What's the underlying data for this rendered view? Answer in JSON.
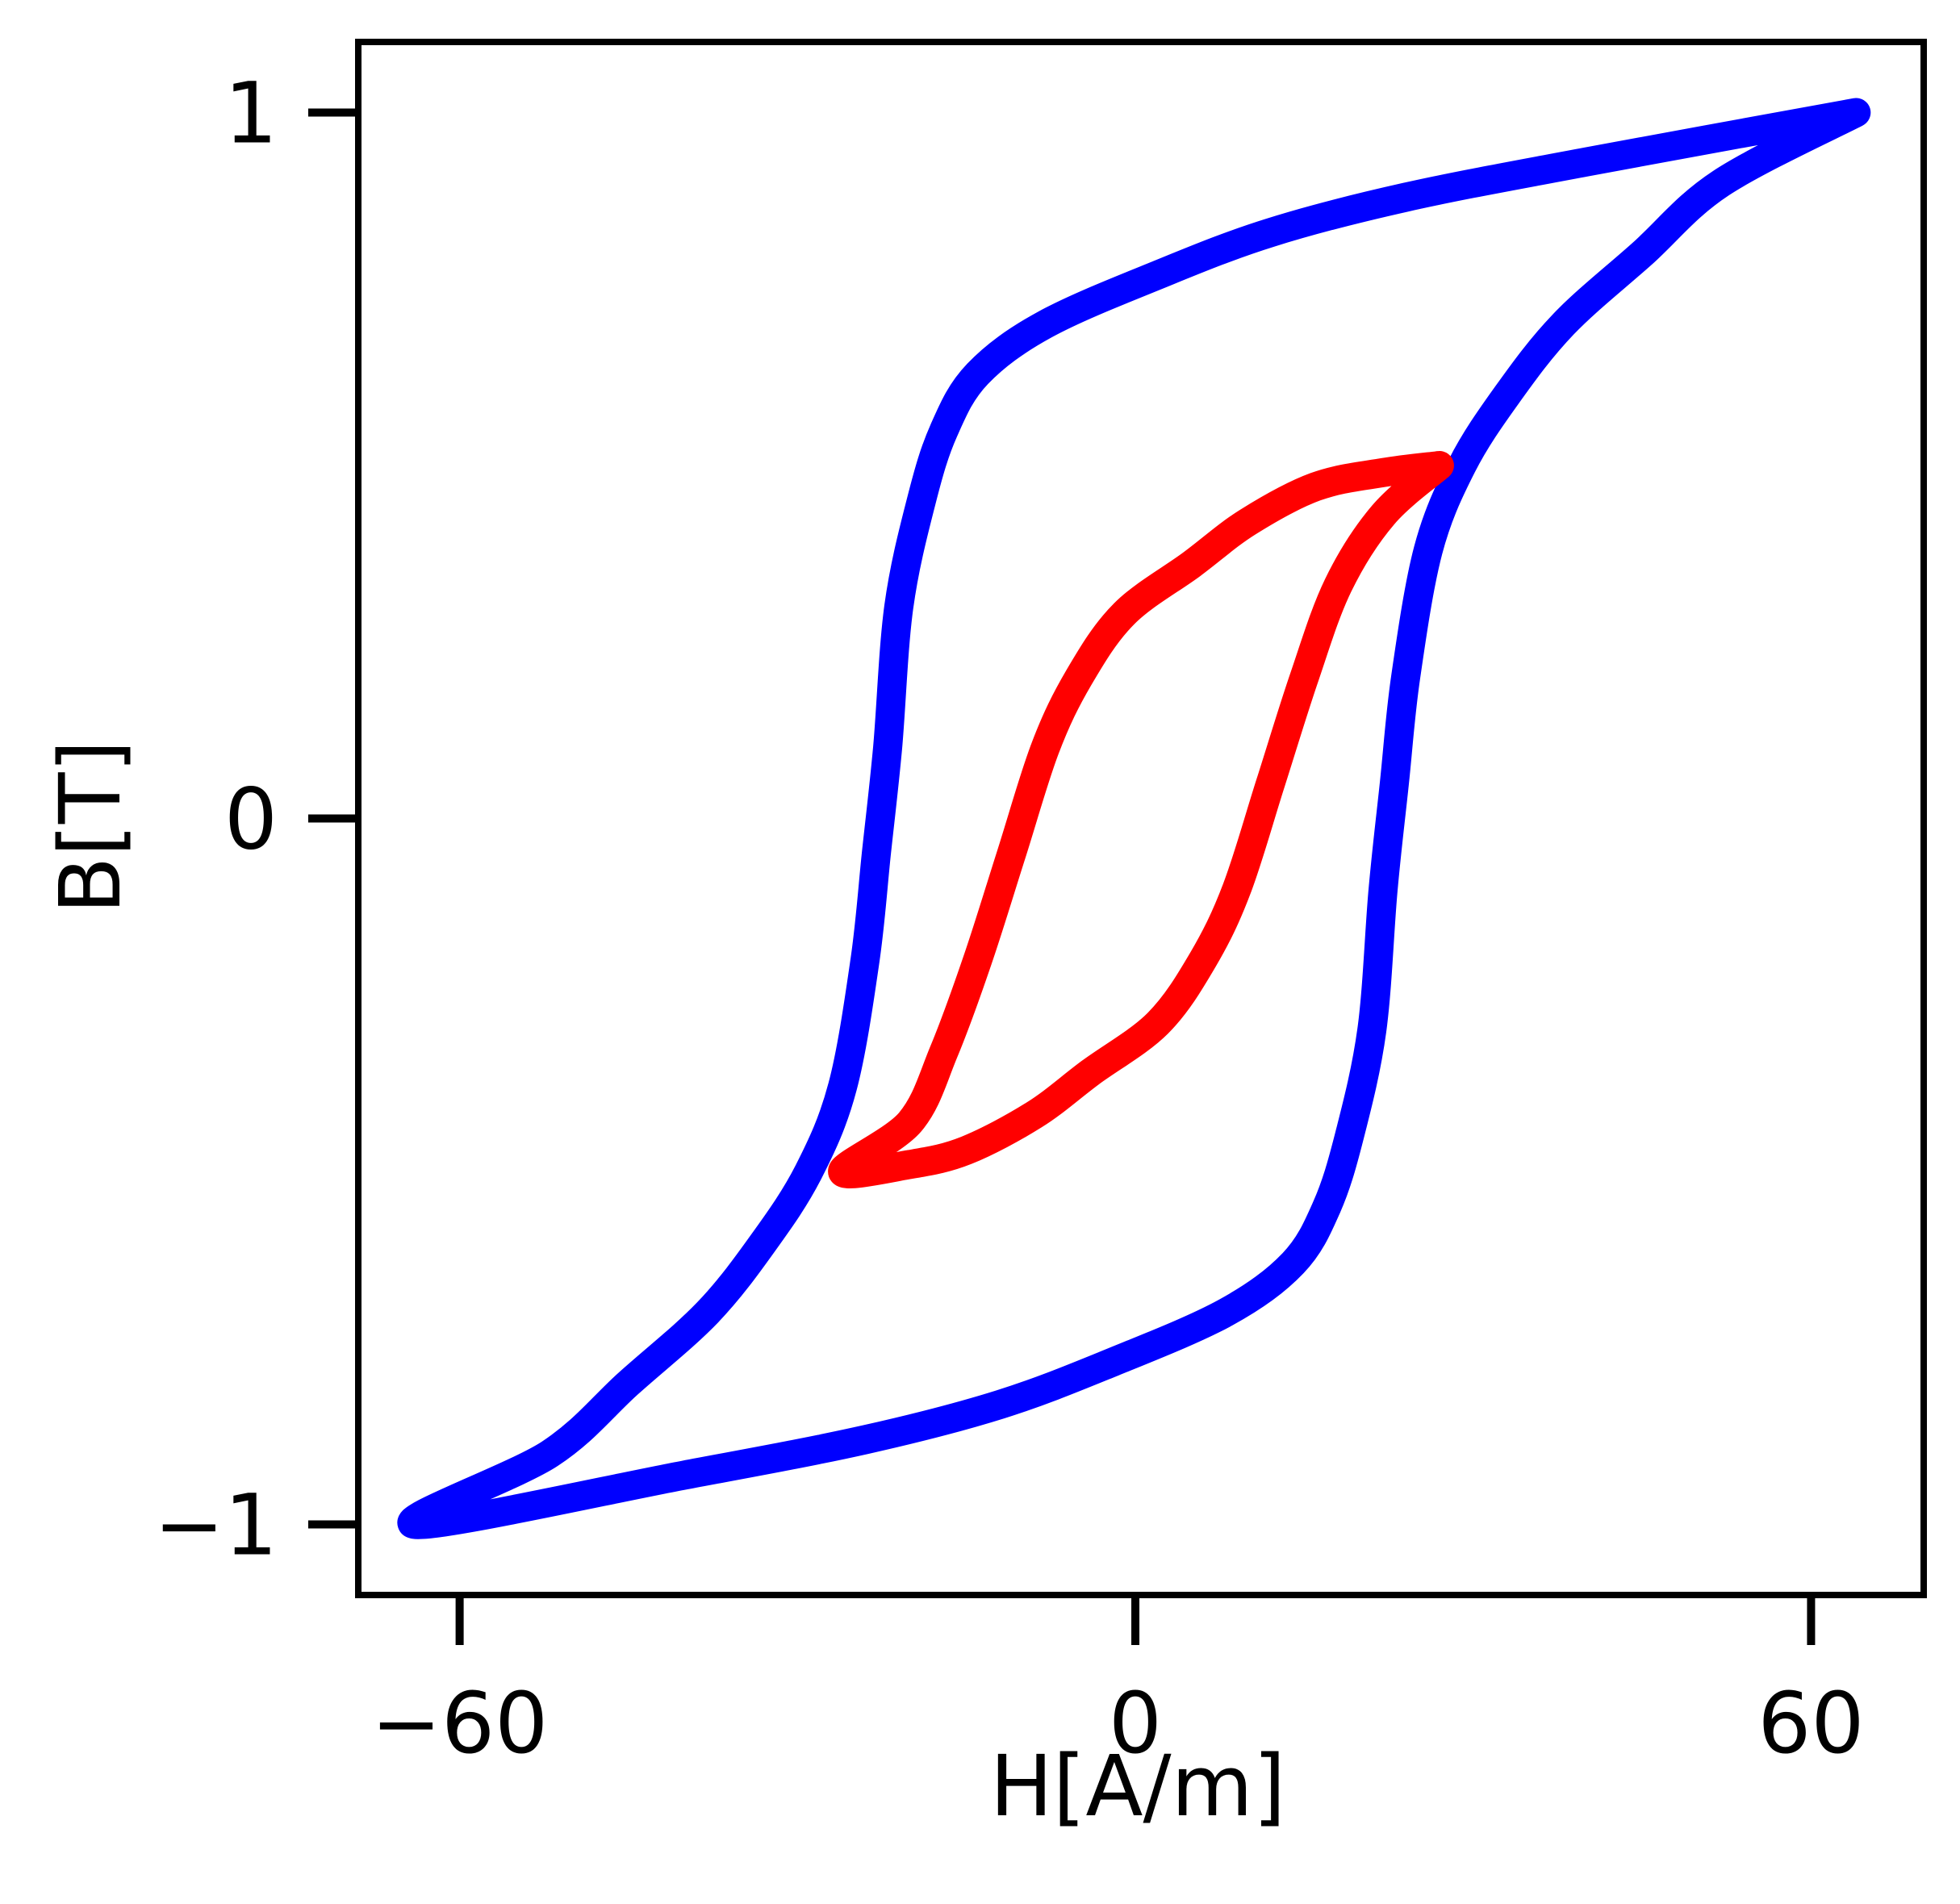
{
  "chart_data": {
    "type": "line",
    "title": "",
    "xlabel": "H[A/m]",
    "ylabel": "B[T]",
    "xlim": [
      -69,
      70
    ],
    "ylim": [
      -1.1,
      1.1
    ],
    "xticks": [
      {
        "value": -60,
        "label": "−60"
      },
      {
        "value": 0,
        "label": "0"
      },
      {
        "value": 60,
        "label": "60"
      }
    ],
    "yticks": [
      {
        "value": -1,
        "label": "−1"
      },
      {
        "value": 0,
        "label": "0"
      },
      {
        "value": 1,
        "label": "1"
      }
    ],
    "grid": false,
    "legend": "none",
    "series": [
      {
        "color": "#0000ff",
        "points": [
          [
            64,
            1.0
          ],
          [
            52,
            0.9
          ],
          [
            45,
            0.8
          ],
          [
            38,
            0.7
          ],
          [
            33,
            0.6
          ],
          [
            29,
            0.5
          ],
          [
            26,
            0.38
          ],
          [
            24,
            0.2
          ],
          [
            23,
            0.05
          ],
          [
            22,
            -0.1
          ],
          [
            21,
            -0.3
          ],
          [
            19,
            -0.45
          ],
          [
            17,
            -0.55
          ],
          [
            14,
            -0.63
          ],
          [
            8,
            -0.7
          ],
          [
            -2,
            -0.77
          ],
          [
            -12,
            -0.83
          ],
          [
            -24,
            -0.88
          ],
          [
            -40,
            -0.93
          ],
          [
            -64,
            -1.0
          ],
          [
            -52,
            -0.9
          ],
          [
            -45,
            -0.8
          ],
          [
            -38,
            -0.7
          ],
          [
            -33,
            -0.6
          ],
          [
            -29,
            -0.5
          ],
          [
            -26,
            -0.38
          ],
          [
            -24,
            -0.2
          ],
          [
            -23,
            -0.05
          ],
          [
            -22,
            0.1
          ],
          [
            -21,
            0.3
          ],
          [
            -19,
            0.45
          ],
          [
            -17,
            0.55
          ],
          [
            -14,
            0.63
          ],
          [
            -8,
            0.7
          ],
          [
            2,
            0.77
          ],
          [
            12,
            0.83
          ],
          [
            24,
            0.88
          ],
          [
            40,
            0.93
          ],
          [
            64,
            1.0
          ]
        ]
      },
      {
        "color": "#ff0000",
        "points": [
          [
            27,
            0.5
          ],
          [
            22,
            0.49
          ],
          [
            16,
            0.47
          ],
          [
            10,
            0.42
          ],
          [
            5,
            0.36
          ],
          [
            -1,
            0.29
          ],
          [
            -5,
            0.2
          ],
          [
            -8,
            0.1
          ],
          [
            -11,
            -0.05
          ],
          [
            -14,
            -0.2
          ],
          [
            -17,
            -0.33
          ],
          [
            -20,
            -0.43
          ],
          [
            -26,
            -0.5
          ],
          [
            -20,
            -0.49
          ],
          [
            -15,
            -0.47
          ],
          [
            -9,
            -0.42
          ],
          [
            -4,
            -0.36
          ],
          [
            2,
            -0.29
          ],
          [
            6,
            -0.2
          ],
          [
            9,
            -0.1
          ],
          [
            12,
            0.05
          ],
          [
            15,
            0.2
          ],
          [
            18,
            0.33
          ],
          [
            22,
            0.43
          ],
          [
            27,
            0.5
          ]
        ]
      }
    ]
  }
}
